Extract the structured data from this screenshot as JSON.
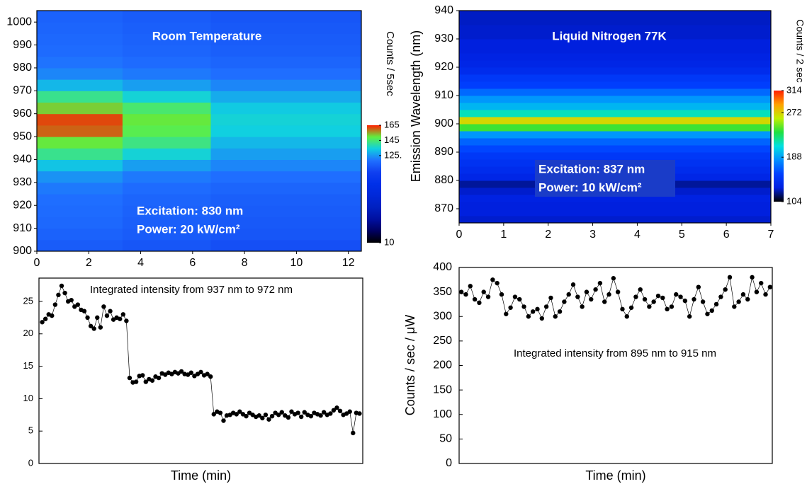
{
  "chart_data": [
    {
      "type": "heatmap",
      "title": "Room Temperature",
      "annotations": [
        "Excitation: 830 nm",
        "Power: 20 kW/cm²"
      ],
      "colorbar_label": "Counts / 5sec",
      "x_bins": [
        0,
        3.3,
        6.7,
        12.5
      ],
      "y_bins": [
        900,
        905,
        910,
        915,
        920,
        925,
        930,
        935,
        940,
        945,
        950,
        955,
        960,
        965,
        970,
        975,
        980,
        985,
        990,
        995,
        1000,
        1005
      ],
      "z": [
        [
          112,
          110,
          108
        ],
        [
          114,
          112,
          110
        ],
        [
          116,
          113,
          111
        ],
        [
          117,
          114,
          112
        ],
        [
          118,
          115,
          113
        ],
        [
          120,
          117,
          115
        ],
        [
          124,
          120,
          118
        ],
        [
          132,
          126,
          122
        ],
        [
          142,
          135,
          126
        ],
        [
          150,
          143,
          130
        ],
        [
          160,
          148,
          134
        ],
        [
          162,
          150,
          135
        ],
        [
          152,
          145,
          133
        ],
        [
          142,
          135,
          128
        ],
        [
          130,
          126,
          122
        ],
        [
          122,
          120,
          118
        ],
        [
          119,
          117,
          115
        ],
        [
          117,
          115,
          113
        ],
        [
          116,
          114,
          112
        ],
        [
          115,
          113,
          111
        ],
        [
          114,
          112,
          110
        ]
      ],
      "zlim": [
        10,
        165
      ],
      "zticks": [
        10,
        {
          "value": 125,
          "label": "125."
        },
        145,
        165
      ],
      "colormap": [
        "#000000",
        "#000060",
        "#0010a0",
        "#0020c0",
        "#0028d8",
        "#0030e8",
        "#1040f0",
        "#2070ff",
        "#10d0e0",
        "#60f040",
        "#ff2000"
      ],
      "xlim": [
        0,
        12.5
      ],
      "xticks": [
        0,
        2,
        4,
        6,
        8,
        10,
        12
      ],
      "ylim": [
        900,
        1005
      ],
      "yticks": [
        900,
        910,
        920,
        930,
        940,
        950,
        960,
        970,
        980,
        990,
        1000
      ]
    },
    {
      "type": "heatmap",
      "title": "Liquid Nitrogen 77K",
      "annotations": [
        "Excitation: 837 nm",
        "Power: 10 kW/cm²"
      ],
      "ylabel": "Emission Wavelength (nm)",
      "colorbar_label": "Counts / 2 sec",
      "x_bins": [
        0,
        7
      ],
      "y_bins": [
        865,
        867.5,
        870,
        872.5,
        875,
        877.5,
        880,
        882.5,
        885,
        887.5,
        890,
        892.5,
        895,
        897.5,
        900,
        902.5,
        905,
        907.5,
        910,
        912.5,
        915,
        917.5,
        920,
        922.5,
        925,
        927.5,
        930,
        932.5,
        935,
        937.5,
        940
      ],
      "z": [
        [
          128
        ],
        [
          130
        ],
        [
          130
        ],
        [
          132
        ],
        [
          128
        ],
        [
          122
        ],
        [
          135
        ],
        [
          140
        ],
        [
          145
        ],
        [
          150
        ],
        [
          158
        ],
        [
          168
        ],
        [
          185
        ],
        [
          240
        ],
        [
          270
        ],
        [
          215
        ],
        [
          195
        ],
        [
          185
        ],
        [
          170
        ],
        [
          155
        ],
        [
          150
        ],
        [
          140
        ],
        [
          135
        ],
        [
          133
        ],
        [
          130
        ],
        [
          130
        ],
        [
          128
        ],
        [
          128
        ],
        [
          127
        ],
        [
          127
        ]
      ],
      "zlim": [
        104,
        314
      ],
      "zticks": [
        104,
        188,
        272,
        314
      ],
      "colormap": [
        "#000000",
        "#0020e0",
        "#0040ff",
        "#0090ff",
        "#00e0e0",
        "#20e040",
        "#c0f000",
        "#ffa000",
        "#ff2000"
      ],
      "xlim": [
        0,
        7
      ],
      "xticks": [
        0,
        1,
        2,
        3,
        4,
        5,
        6,
        7
      ],
      "ylim": [
        865,
        940
      ],
      "yticks": [
        870,
        880,
        890,
        900,
        910,
        920,
        930,
        940
      ]
    },
    {
      "type": "line",
      "annotation": "Integrated intensity from 937 nm to 972 nm",
      "xlabel": "Time (min)",
      "color": "#000000",
      "x": [
        0.125,
        0.25,
        0.375,
        0.5,
        0.625,
        0.75,
        0.875,
        1.0,
        1.125,
        1.25,
        1.375,
        1.5,
        1.625,
        1.75,
        1.875,
        2.0,
        2.125,
        2.25,
        2.375,
        2.5,
        2.625,
        2.75,
        2.875,
        3.0,
        3.125,
        3.25,
        3.375,
        3.5,
        3.625,
        3.75,
        3.875,
        4.0,
        4.125,
        4.25,
        4.375,
        4.5,
        4.625,
        4.75,
        4.875,
        5.0,
        5.125,
        5.25,
        5.375,
        5.5,
        5.625,
        5.75,
        5.875,
        6.0,
        6.125,
        6.25,
        6.375,
        6.5,
        6.625,
        6.75,
        6.875,
        7.0,
        7.125,
        7.25,
        7.375,
        7.5,
        7.625,
        7.75,
        7.875,
        8.0,
        8.125,
        8.25,
        8.375,
        8.5,
        8.625,
        8.75,
        8.875,
        9.0,
        9.125,
        9.25,
        9.375,
        9.5,
        9.625,
        9.75,
        9.875,
        10.0,
        10.125,
        10.25,
        10.375,
        10.5,
        10.625,
        10.75,
        10.875,
        11.0,
        11.125,
        11.25,
        11.375,
        11.5,
        11.625,
        11.75,
        11.875,
        12.0,
        12.125,
        12.25,
        12.375
      ],
      "values": [
        21.8,
        22.3,
        23,
        22.8,
        24.5,
        26,
        27.4,
        26.3,
        25,
        25.2,
        24.2,
        24.5,
        23.7,
        23.5,
        22.5,
        21.2,
        20.8,
        22.5,
        21,
        24.2,
        22.8,
        23.5,
        22.2,
        22.5,
        22.3,
        23,
        22,
        13.2,
        12.5,
        12.6,
        13.5,
        13.6,
        12.6,
        13,
        12.8,
        13.4,
        13.2,
        13.9,
        13.7,
        14,
        13.8,
        14.1,
        13.9,
        14.2,
        13.8,
        13.7,
        14,
        13.5,
        13.8,
        14.1,
        13.6,
        13.8,
        13.4,
        7.6,
        8,
        7.8,
        6.6,
        7.4,
        7.5,
        7.8,
        7.6,
        8,
        7.6,
        7.3,
        7.8,
        7.5,
        7.2,
        7.4,
        7,
        7.5,
        6.8,
        7.3,
        7.8,
        7.5,
        7.9,
        7.4,
        7.1,
        8,
        7.6,
        7.8,
        7.2,
        7.9,
        7.5,
        7.3,
        7.8,
        7.6,
        7.4,
        7.9,
        7.5,
        7.7,
        8.2,
        8.6,
        8.1,
        7.5,
        7.7,
        8,
        4.7,
        7.8,
        7.7
      ],
      "xlim": [
        0,
        12.5
      ],
      "ylim": [
        0,
        28.6
      ],
      "yticks": [
        0,
        5,
        10,
        15,
        20,
        25
      ]
    },
    {
      "type": "line",
      "annotation": "Integrated intensity from 895 nm to 915 nm",
      "xlabel": "Time (min)",
      "ylabel": "Counts / sec / μW",
      "color": "#000000",
      "x": [
        0.05,
        0.15,
        0.25,
        0.35,
        0.45,
        0.55,
        0.65,
        0.75,
        0.85,
        0.95,
        1.05,
        1.15,
        1.25,
        1.35,
        1.45,
        1.55,
        1.65,
        1.75,
        1.85,
        1.95,
        2.05,
        2.15,
        2.25,
        2.35,
        2.45,
        2.55,
        2.65,
        2.75,
        2.85,
        2.95,
        3.05,
        3.15,
        3.25,
        3.35,
        3.45,
        3.55,
        3.65,
        3.75,
        3.85,
        3.95,
        4.05,
        4.15,
        4.25,
        4.35,
        4.45,
        4.55,
        4.65,
        4.75,
        4.85,
        4.95,
        5.05,
        5.15,
        5.25,
        5.35,
        5.45,
        5.55,
        5.65,
        5.75,
        5.85,
        5.95,
        6.05,
        6.15,
        6.25,
        6.35,
        6.45,
        6.55,
        6.65,
        6.75,
        6.85,
        6.95
      ],
      "values": [
        350,
        345,
        362,
        335,
        328,
        350,
        340,
        375,
        368,
        345,
        305,
        318,
        340,
        335,
        320,
        300,
        310,
        315,
        296,
        320,
        338,
        300,
        310,
        330,
        345,
        365,
        340,
        320,
        350,
        335,
        355,
        368,
        330,
        345,
        378,
        350,
        315,
        300,
        318,
        340,
        355,
        335,
        320,
        330,
        342,
        338,
        315,
        320,
        345,
        340,
        332,
        300,
        335,
        360,
        330,
        305,
        312,
        325,
        340,
        355,
        380,
        320,
        330,
        345,
        335,
        380,
        350,
        368,
        345,
        360
      ],
      "xlim": [
        0,
        7
      ],
      "ylim": [
        0,
        400
      ],
      "yticks": [
        0,
        50,
        100,
        150,
        200,
        250,
        300,
        350,
        400
      ]
    }
  ]
}
